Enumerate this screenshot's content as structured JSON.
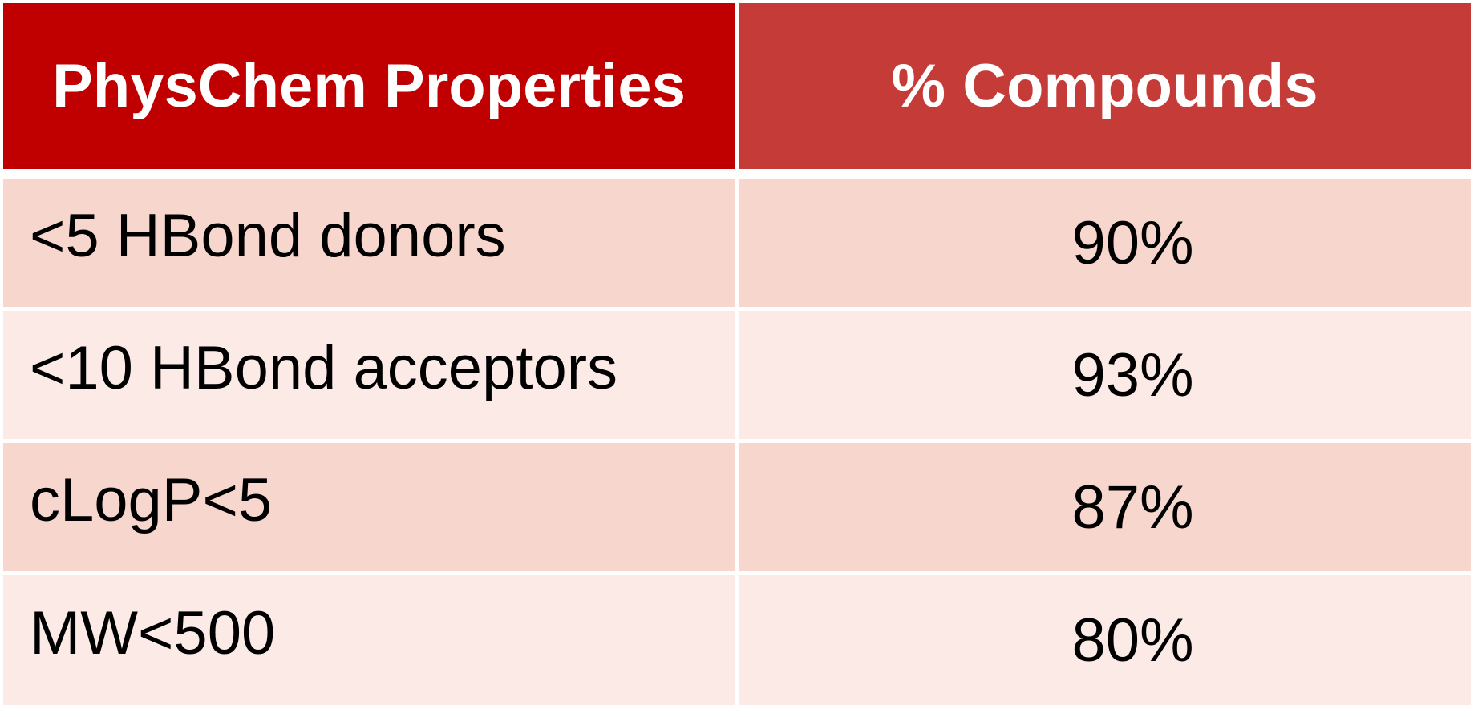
{
  "table": {
    "headers": [
      "PhysChem Properties",
      "% Compounds"
    ],
    "rows": [
      {
        "property": "<5 HBond donors",
        "percent": "90%"
      },
      {
        "property": "<10 HBond acceptors",
        "percent": "93%"
      },
      {
        "property": "cLogP<5",
        "percent": "87%"
      },
      {
        "property": "MW<500",
        "percent": "80%"
      }
    ]
  },
  "colors": {
    "header_left": "#c00000",
    "header_right": "#c43b37",
    "row_dark": "#f7d6cd",
    "row_light": "#fbeae6"
  }
}
